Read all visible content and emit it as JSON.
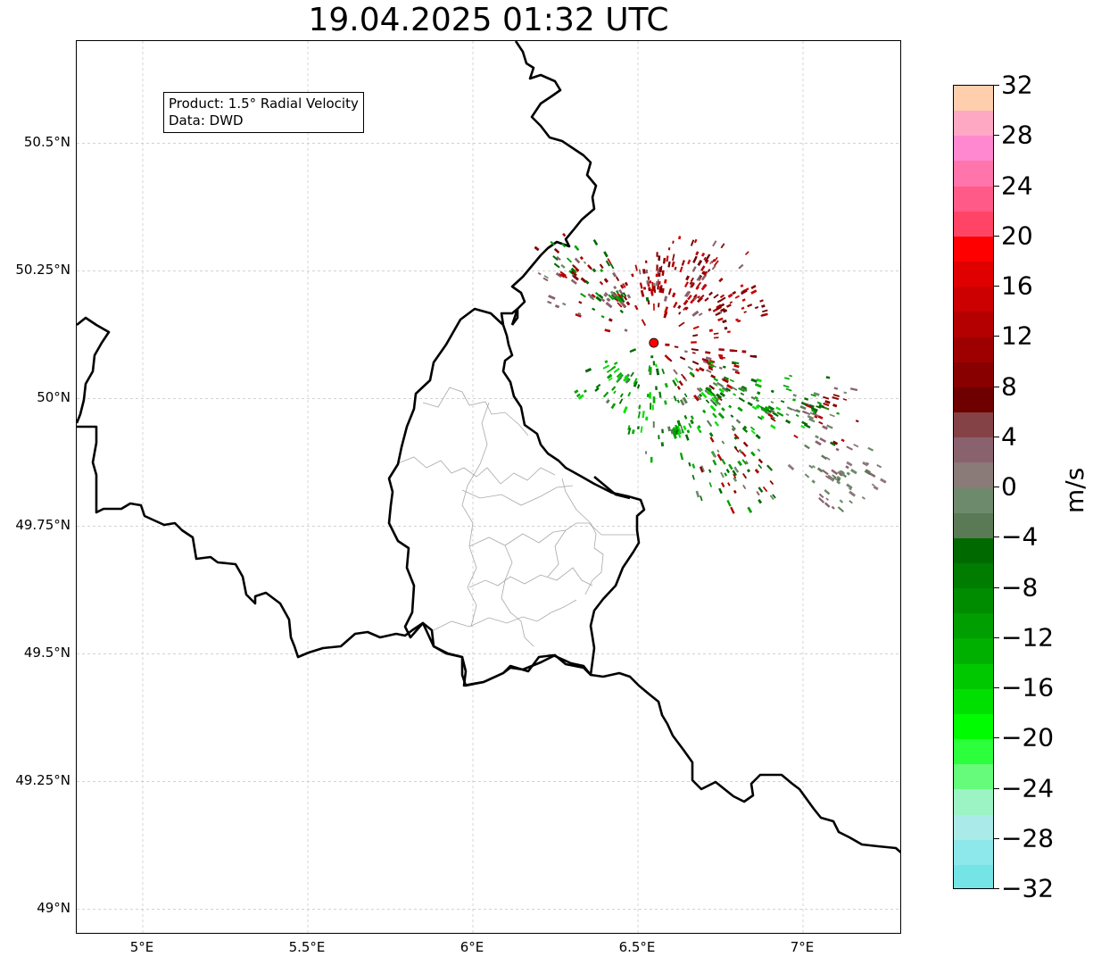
{
  "title": "19.04.2025 01:32 UTC",
  "info": {
    "product": "Product: 1.5° Radial Velocity",
    "data": "Data: DWD"
  },
  "x_ticks": [
    "5°E",
    "5.5°E",
    "6°E",
    "6.5°E",
    "7°E"
  ],
  "y_ticks": [
    "50.5°N",
    "50.25°N",
    "50°N",
    "49.75°N",
    "49.5°N",
    "49.25°N",
    "49°N"
  ],
  "colorbar": {
    "unit": "m/s",
    "min": -32,
    "max": 32,
    "tick_labels": [
      "32",
      "28",
      "24",
      "20",
      "16",
      "12",
      "8",
      "4",
      "0",
      "−4",
      "−8",
      "−12",
      "−16",
      "−20",
      "−24",
      "−28",
      "−32"
    ],
    "colors_top_to_bottom": [
      "#ffceac",
      "#ffa8c4",
      "#ff88d0",
      "#ff74aa",
      "#ff5a88",
      "#ff4466",
      "#ff0000",
      "#e00000",
      "#cc0000",
      "#b40000",
      "#9e0000",
      "#880000",
      "#6e0000",
      "#844246",
      "#8a626e",
      "#8a7a78",
      "#6e8a6c",
      "#5a7a56",
      "#006a00",
      "#007c00",
      "#008c00",
      "#009e00",
      "#00b000",
      "#00c800",
      "#00e000",
      "#00fc00",
      "#2cff3c",
      "#66fb7a",
      "#9cf4c4",
      "#aaeae8",
      "#8ce8ea",
      "#74e4e6"
    ]
  },
  "map": {
    "extent": {
      "lon": [
        4.8,
        7.3
      ],
      "lat": [
        48.95,
        50.7
      ]
    },
    "grid_lons": [
      5.0,
      5.5,
      6.0,
      6.5,
      7.0
    ],
    "grid_lats": [
      49.0,
      49.25,
      49.5,
      49.75,
      50.0,
      50.25,
      50.5
    ],
    "radar_site": {
      "lon": 6.548,
      "lat": 50.109
    },
    "velocity_clusters": [
      {
        "lon": 6.7,
        "lat": 50.26,
        "kind": "red"
      },
      {
        "lon": 6.55,
        "lat": 50.22,
        "kind": "red"
      },
      {
        "lon": 6.75,
        "lat": 50.18,
        "kind": "red"
      },
      {
        "lon": 6.72,
        "lat": 50.07,
        "kind": "red"
      },
      {
        "lon": 6.43,
        "lat": 50.2,
        "kind": "mixed"
      },
      {
        "lon": 6.3,
        "lat": 50.25,
        "kind": "mixed"
      },
      {
        "lon": 6.75,
        "lat": 50.0,
        "kind": "green"
      },
      {
        "lon": 6.9,
        "lat": 49.98,
        "kind": "green"
      },
      {
        "lon": 6.62,
        "lat": 49.93,
        "kind": "green"
      },
      {
        "lon": 6.45,
        "lat": 50.03,
        "kind": "green"
      },
      {
        "lon": 6.8,
        "lat": 49.85,
        "kind": "mixed"
      },
      {
        "lon": 7.05,
        "lat": 49.98,
        "kind": "mixed"
      },
      {
        "lon": 7.12,
        "lat": 49.85,
        "kind": "gray"
      }
    ]
  }
}
